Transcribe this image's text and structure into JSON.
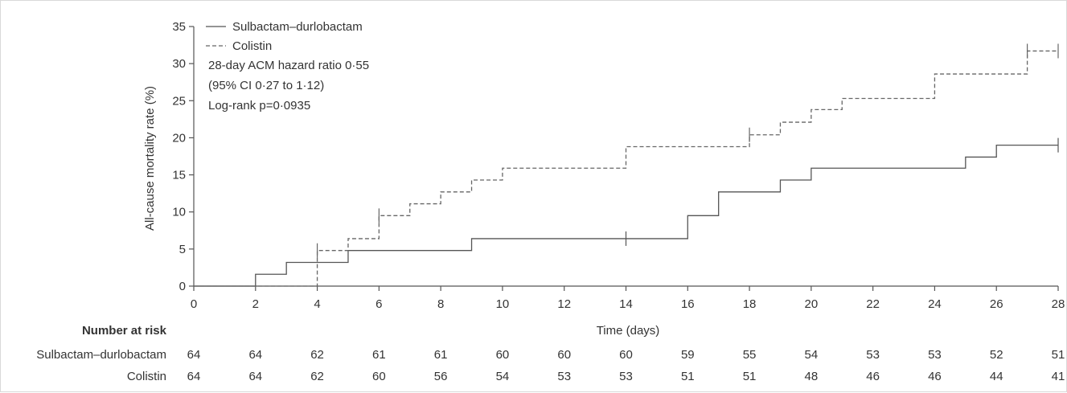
{
  "chart_data": {
    "type": "line",
    "ylabel": "All-cause mortality rate (%)",
    "xlabel": "Time (days)",
    "xlim": [
      0,
      28
    ],
    "ylim": [
      0,
      35
    ],
    "x_ticks": [
      0,
      2,
      4,
      6,
      8,
      10,
      12,
      14,
      16,
      18,
      20,
      22,
      24,
      26,
      28
    ],
    "y_ticks": [
      0,
      5,
      10,
      15,
      20,
      25,
      30,
      35
    ],
    "grid": false,
    "legend_position": "top-left",
    "series": [
      {
        "name": "Sulbactam–durlobactam",
        "line_style": "solid",
        "color": "#555555",
        "steps": [
          [
            0,
            0
          ],
          [
            2,
            1.6
          ],
          [
            3,
            3.2
          ],
          [
            5,
            4.8
          ],
          [
            9,
            6.4
          ],
          [
            16,
            9.5
          ],
          [
            17,
            12.7
          ],
          [
            19,
            14.3
          ],
          [
            20,
            15.9
          ],
          [
            25,
            17.4
          ],
          [
            26,
            19.0
          ]
        ],
        "x_end": 28,
        "censor_marks": [
          [
            14,
            6.4
          ],
          [
            28,
            19.0
          ]
        ]
      },
      {
        "name": "Colistin",
        "line_style": "dashed",
        "color": "#666666",
        "steps": [
          [
            0,
            0
          ],
          [
            4,
            4.8
          ],
          [
            5,
            6.4
          ],
          [
            6,
            9.5
          ],
          [
            7,
            11.1
          ],
          [
            8,
            12.7
          ],
          [
            9,
            14.3
          ],
          [
            10,
            15.9
          ],
          [
            14,
            18.8
          ],
          [
            18,
            20.4
          ],
          [
            19,
            22.1
          ],
          [
            20,
            23.8
          ],
          [
            21,
            25.3
          ],
          [
            24,
            28.6
          ],
          [
            27,
            31.7
          ]
        ],
        "x_end": 28,
        "censor_marks": [
          [
            4,
            4.8
          ],
          [
            6,
            9.5
          ],
          [
            18,
            20.4
          ],
          [
            27,
            31.7
          ],
          [
            28,
            31.7
          ]
        ]
      }
    ],
    "annotations": [
      "28-day ACM hazard ratio 0·55",
      "(95% CI 0·27 to 1·12)",
      "Log-rank p=0·0935"
    ],
    "risk_table": {
      "header": "Number at risk",
      "rows": [
        {
          "label": "Sulbactam–durlobactam",
          "values": [
            64,
            64,
            62,
            61,
            61,
            60,
            60,
            60,
            59,
            55,
            54,
            53,
            53,
            52,
            51
          ]
        },
        {
          "label": "Colistin",
          "values": [
            64,
            64,
            62,
            60,
            56,
            54,
            53,
            53,
            51,
            51,
            48,
            46,
            46,
            44,
            41
          ]
        }
      ]
    }
  }
}
